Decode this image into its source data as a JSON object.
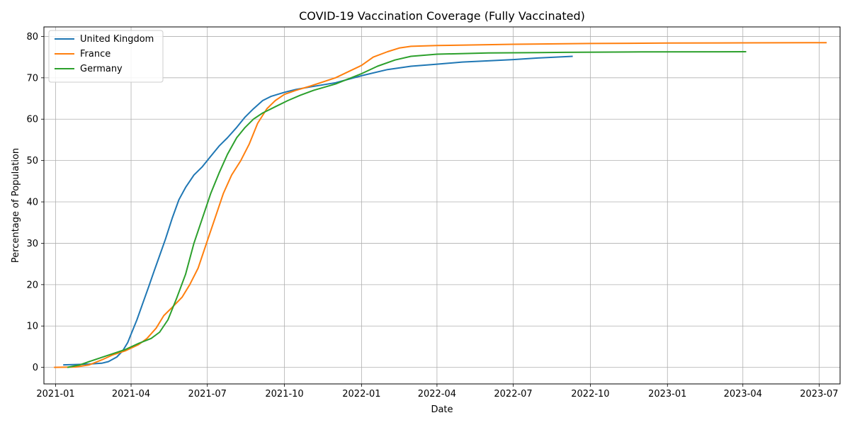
{
  "chart_data": {
    "type": "line",
    "title": "COVID-19 Vaccination Coverage (Fully Vaccinated)",
    "xlabel": "Date",
    "ylabel": "Percentage of Population",
    "xlim": [
      "2020-12-18",
      "2023-07-26"
    ],
    "ylim": [
      -4,
      82.3
    ],
    "x_ticks": [
      "2021-01",
      "2021-04",
      "2021-07",
      "2021-10",
      "2022-01",
      "2022-04",
      "2022-07",
      "2022-10",
      "2023-01",
      "2023-04",
      "2023-07"
    ],
    "y_ticks": [
      0,
      10,
      20,
      30,
      40,
      50,
      60,
      70,
      80
    ],
    "grid": true,
    "legend_position": "top-left",
    "series": [
      {
        "name": "United Kingdom",
        "color": "#1f77b4",
        "points": [
          [
            "2021-01-10",
            0.6
          ],
          [
            "2021-01-25",
            0.7
          ],
          [
            "2021-02-10",
            0.8
          ],
          [
            "2021-02-25",
            1.0
          ],
          [
            "2021-03-05",
            1.4
          ],
          [
            "2021-03-15",
            2.5
          ],
          [
            "2021-03-22",
            4.0
          ],
          [
            "2021-03-28",
            6.0
          ],
          [
            "2021-04-01",
            8.0
          ],
          [
            "2021-04-08",
            11.5
          ],
          [
            "2021-04-15",
            15.5
          ],
          [
            "2021-04-22",
            19.5
          ],
          [
            "2021-04-28",
            23.0
          ],
          [
            "2021-05-05",
            27.0
          ],
          [
            "2021-05-12",
            31.0
          ],
          [
            "2021-05-20",
            36.0
          ],
          [
            "2021-05-28",
            40.5
          ],
          [
            "2021-06-05",
            43.5
          ],
          [
            "2021-06-15",
            46.5
          ],
          [
            "2021-06-25",
            48.5
          ],
          [
            "2021-07-05",
            51.0
          ],
          [
            "2021-07-15",
            53.5
          ],
          [
            "2021-07-25",
            55.5
          ],
          [
            "2021-08-05",
            58.0
          ],
          [
            "2021-08-15",
            60.5
          ],
          [
            "2021-08-25",
            62.5
          ],
          [
            "2021-09-05",
            64.5
          ],
          [
            "2021-09-15",
            65.5
          ],
          [
            "2021-10-01",
            66.5
          ],
          [
            "2021-10-15",
            67.2
          ],
          [
            "2021-11-01",
            67.8
          ],
          [
            "2021-12-01",
            68.8
          ],
          [
            "2022-01-01",
            70.5
          ],
          [
            "2022-02-01",
            72.0
          ],
          [
            "2022-03-01",
            72.8
          ],
          [
            "2022-04-01",
            73.3
          ],
          [
            "2022-05-01",
            73.8
          ],
          [
            "2022-06-01",
            74.1
          ],
          [
            "2022-07-01",
            74.4
          ],
          [
            "2022-08-01",
            74.8
          ],
          [
            "2022-09-10",
            75.2
          ]
        ]
      },
      {
        "name": "France",
        "color": "#ff7f0e",
        "points": [
          [
            "2020-12-30",
            0.0
          ],
          [
            "2021-01-25",
            0.1
          ],
          [
            "2021-02-10",
            0.6
          ],
          [
            "2021-02-25",
            1.8
          ],
          [
            "2021-03-10",
            3.0
          ],
          [
            "2021-03-25",
            4.0
          ],
          [
            "2021-04-10",
            5.5
          ],
          [
            "2021-04-20",
            7.0
          ],
          [
            "2021-05-01",
            9.5
          ],
          [
            "2021-05-10",
            12.5
          ],
          [
            "2021-05-20",
            14.5
          ],
          [
            "2021-06-01",
            17.0
          ],
          [
            "2021-06-10",
            20.0
          ],
          [
            "2021-06-20",
            24.0
          ],
          [
            "2021-06-30",
            30.0
          ],
          [
            "2021-07-10",
            36.0
          ],
          [
            "2021-07-20",
            42.0
          ],
          [
            "2021-07-30",
            46.5
          ],
          [
            "2021-08-10",
            50.0
          ],
          [
            "2021-08-20",
            54.0
          ],
          [
            "2021-08-30",
            59.0
          ],
          [
            "2021-09-10",
            62.5
          ],
          [
            "2021-09-20",
            64.5
          ],
          [
            "2021-10-01",
            66.0
          ],
          [
            "2021-10-15",
            67.0
          ],
          [
            "2021-11-01",
            68.0
          ],
          [
            "2021-12-01",
            70.0
          ],
          [
            "2022-01-01",
            73.0
          ],
          [
            "2022-01-15",
            75.0
          ],
          [
            "2022-02-01",
            76.3
          ],
          [
            "2022-02-15",
            77.2
          ],
          [
            "2022-03-01",
            77.6
          ],
          [
            "2022-04-01",
            77.8
          ],
          [
            "2022-07-01",
            78.1
          ],
          [
            "2022-10-01",
            78.3
          ],
          [
            "2023-01-01",
            78.4
          ],
          [
            "2023-04-01",
            78.45
          ],
          [
            "2023-07-10",
            78.5
          ]
        ]
      },
      {
        "name": "Germany",
        "color": "#2ca02c",
        "points": [
          [
            "2021-01-15",
            0.0
          ],
          [
            "2021-01-30",
            0.6
          ],
          [
            "2021-02-10",
            1.4
          ],
          [
            "2021-02-25",
            2.4
          ],
          [
            "2021-03-10",
            3.3
          ],
          [
            "2021-03-25",
            4.3
          ],
          [
            "2021-04-10",
            5.8
          ],
          [
            "2021-04-25",
            7.0
          ],
          [
            "2021-05-05",
            8.5
          ],
          [
            "2021-05-15",
            11.5
          ],
          [
            "2021-05-25",
            16.5
          ],
          [
            "2021-06-05",
            22.5
          ],
          [
            "2021-06-15",
            30.0
          ],
          [
            "2021-06-25",
            36.0
          ],
          [
            "2021-07-05",
            42.0
          ],
          [
            "2021-07-15",
            47.0
          ],
          [
            "2021-07-25",
            51.5
          ],
          [
            "2021-08-05",
            55.5
          ],
          [
            "2021-08-15",
            58.0
          ],
          [
            "2021-08-25",
            60.0
          ],
          [
            "2021-09-05",
            61.5
          ],
          [
            "2021-09-20",
            63.0
          ],
          [
            "2021-10-05",
            64.5
          ],
          [
            "2021-10-20",
            65.8
          ],
          [
            "2021-11-05",
            67.0
          ],
          [
            "2021-12-01",
            68.5
          ],
          [
            "2022-01-01",
            71.0
          ],
          [
            "2022-01-20",
            72.8
          ],
          [
            "2022-02-10",
            74.3
          ],
          [
            "2022-03-01",
            75.2
          ],
          [
            "2022-04-01",
            75.7
          ],
          [
            "2022-06-01",
            76.0
          ],
          [
            "2022-09-01",
            76.15
          ],
          [
            "2022-12-01",
            76.25
          ],
          [
            "2023-04-05",
            76.3
          ]
        ]
      }
    ]
  }
}
